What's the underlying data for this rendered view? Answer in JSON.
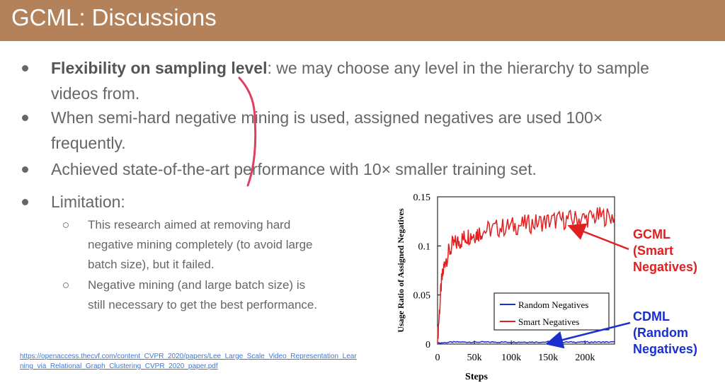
{
  "slide": {
    "title": "GCML: Discussions",
    "bullets": [
      {
        "bold": "Flexibility on sampling level",
        "text_l1": ": we may choose any level in the hierarchy to sample",
        "text_l2": "videos from."
      },
      {
        "text_l1": "When semi-hard negative mining is used, assigned negatives are used 100×",
        "text_l2": "frequently."
      },
      {
        "text_l1": "Achieved state-of-the-art performance with 10× smaller training set."
      },
      {
        "text_l1": "Limitation:"
      }
    ],
    "sub_bullets": [
      {
        "lines": [
          "This research aimed at removing hard",
          "negative mining completely (to avoid large",
          "batch size), but it failed."
        ]
      },
      {
        "lines": [
          "Negative mining (and large batch size) is",
          "still necessary to get the best performance."
        ]
      }
    ],
    "link_text": "https://openaccess.thecvf.com/content_CVPR_2020/papers/Lee_Large_Scale_Video_Representation_Learning_via_Relational_Graph_Clustering_CVPR_2020_paper.pdf",
    "callouts": {
      "gcml": [
        "GCML",
        "(Smart",
        "Negatives)"
      ],
      "cdml": [
        "CDML",
        "(Random",
        "Negatives)"
      ],
      "gcml_color": "#e02020",
      "cdml_color": "#1a2fd0"
    }
  },
  "chart_data": {
    "type": "line",
    "xlabel": "Steps",
    "ylabel": "Usage Ratio of Assigned Negatives",
    "xlim": [
      0,
      240000
    ],
    "ylim": [
      0,
      0.15
    ],
    "x_ticks": [
      0,
      50000,
      100000,
      150000,
      200000
    ],
    "x_tick_labels": [
      "0",
      "50k",
      "100k",
      "150k",
      "200k"
    ],
    "y_ticks": [
      0,
      0.05,
      0.1,
      0.15
    ],
    "y_tick_labels": [
      "0",
      "0.05",
      "0.1",
      "0.15"
    ],
    "legend_position": "bottom-right",
    "series": [
      {
        "name": "Random Negatives",
        "color": "#1a2fd0",
        "x": [
          0,
          20000,
          40000,
          60000,
          80000,
          100000,
          120000,
          140000,
          160000,
          180000,
          200000,
          220000,
          240000
        ],
        "values": [
          0.001,
          0.002,
          0.002,
          0.002,
          0.002,
          0.002,
          0.002,
          0.002,
          0.002,
          0.002,
          0.002,
          0.002,
          0.002
        ]
      },
      {
        "name": "Smart Negatives",
        "color": "#e02020",
        "x": [
          0,
          5000,
          10000,
          20000,
          30000,
          40000,
          50000,
          60000,
          80000,
          100000,
          120000,
          140000,
          160000,
          180000,
          200000,
          220000,
          240000
        ],
        "values": [
          0.005,
          0.06,
          0.085,
          0.1,
          0.105,
          0.11,
          0.112,
          0.115,
          0.118,
          0.12,
          0.122,
          0.124,
          0.126,
          0.127,
          0.128,
          0.13,
          0.13
        ]
      }
    ]
  }
}
